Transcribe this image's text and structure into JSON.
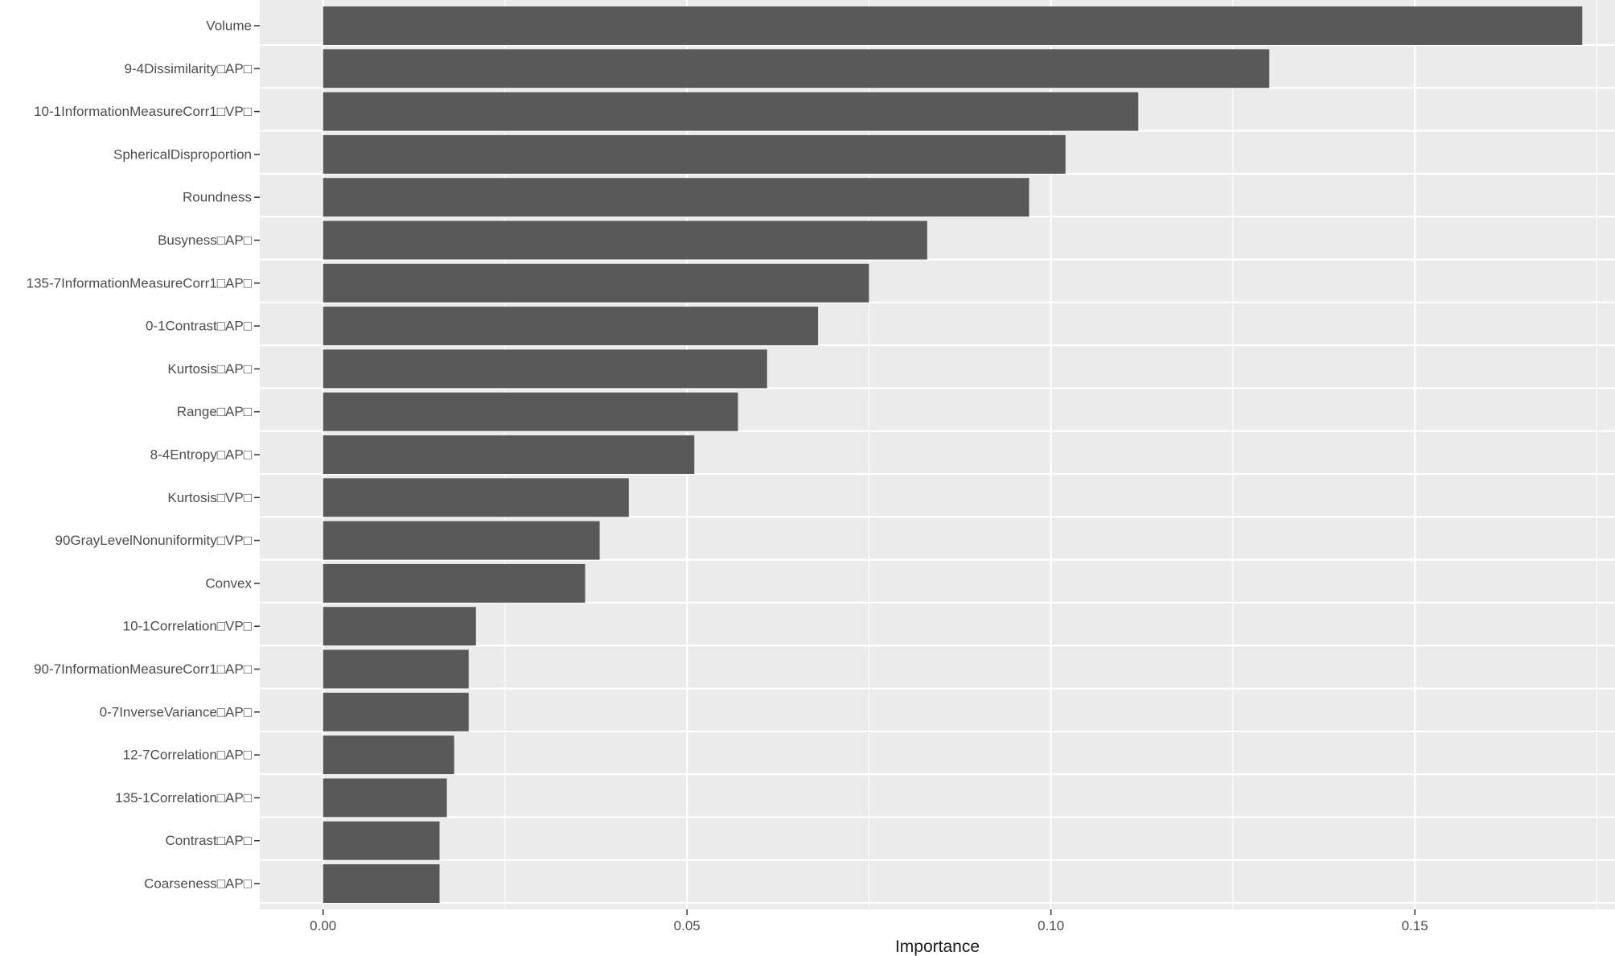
{
  "chart_data": {
    "type": "bar",
    "orientation": "horizontal",
    "title": "",
    "xlabel": "Importance",
    "ylabel": "",
    "xlim": [
      -0.0087,
      0.1775
    ],
    "x_ticks": [
      0.0,
      0.05,
      0.1,
      0.15
    ],
    "x_tick_labels": [
      "0.00",
      "0.05",
      "0.10",
      "0.15"
    ],
    "grid": true,
    "legend": "none",
    "categories": [
      "Volume",
      "9-4Dissimilarity□AP□",
      "10-1InformationMeasureCorr1□VP□",
      "SphericalDisproportion",
      "Roundness",
      "Busyness□AP□",
      "135-7InformationMeasureCorr1□AP□",
      "0-1Contrast□AP□",
      "Kurtosis□AP□",
      "Range□AP□",
      "8-4Entropy□AP□",
      "Kurtosis□VP□",
      "90GrayLevelNonuniformity□VP□",
      "Convex",
      "10-1Correlation□VP□",
      "90-7InformationMeasureCorr1□AP□",
      "0-7InverseVariance□AP□",
      "12-7Correlation□AP□",
      "135-1Correlation□AP□",
      "Contrast□AP□",
      "Coarseness□AP□"
    ],
    "values": [
      0.173,
      0.13,
      0.112,
      0.102,
      0.097,
      0.083,
      0.075,
      0.068,
      0.061,
      0.057,
      0.051,
      0.042,
      0.038,
      0.036,
      0.021,
      0.02,
      0.02,
      0.018,
      0.017,
      0.016,
      0.016
    ],
    "colors": {
      "panel": "#ebebeb",
      "grid_major": "#ffffff",
      "bar": "#595959",
      "tick_text": "#4d4d4d",
      "tick_mark": "#333333"
    }
  }
}
